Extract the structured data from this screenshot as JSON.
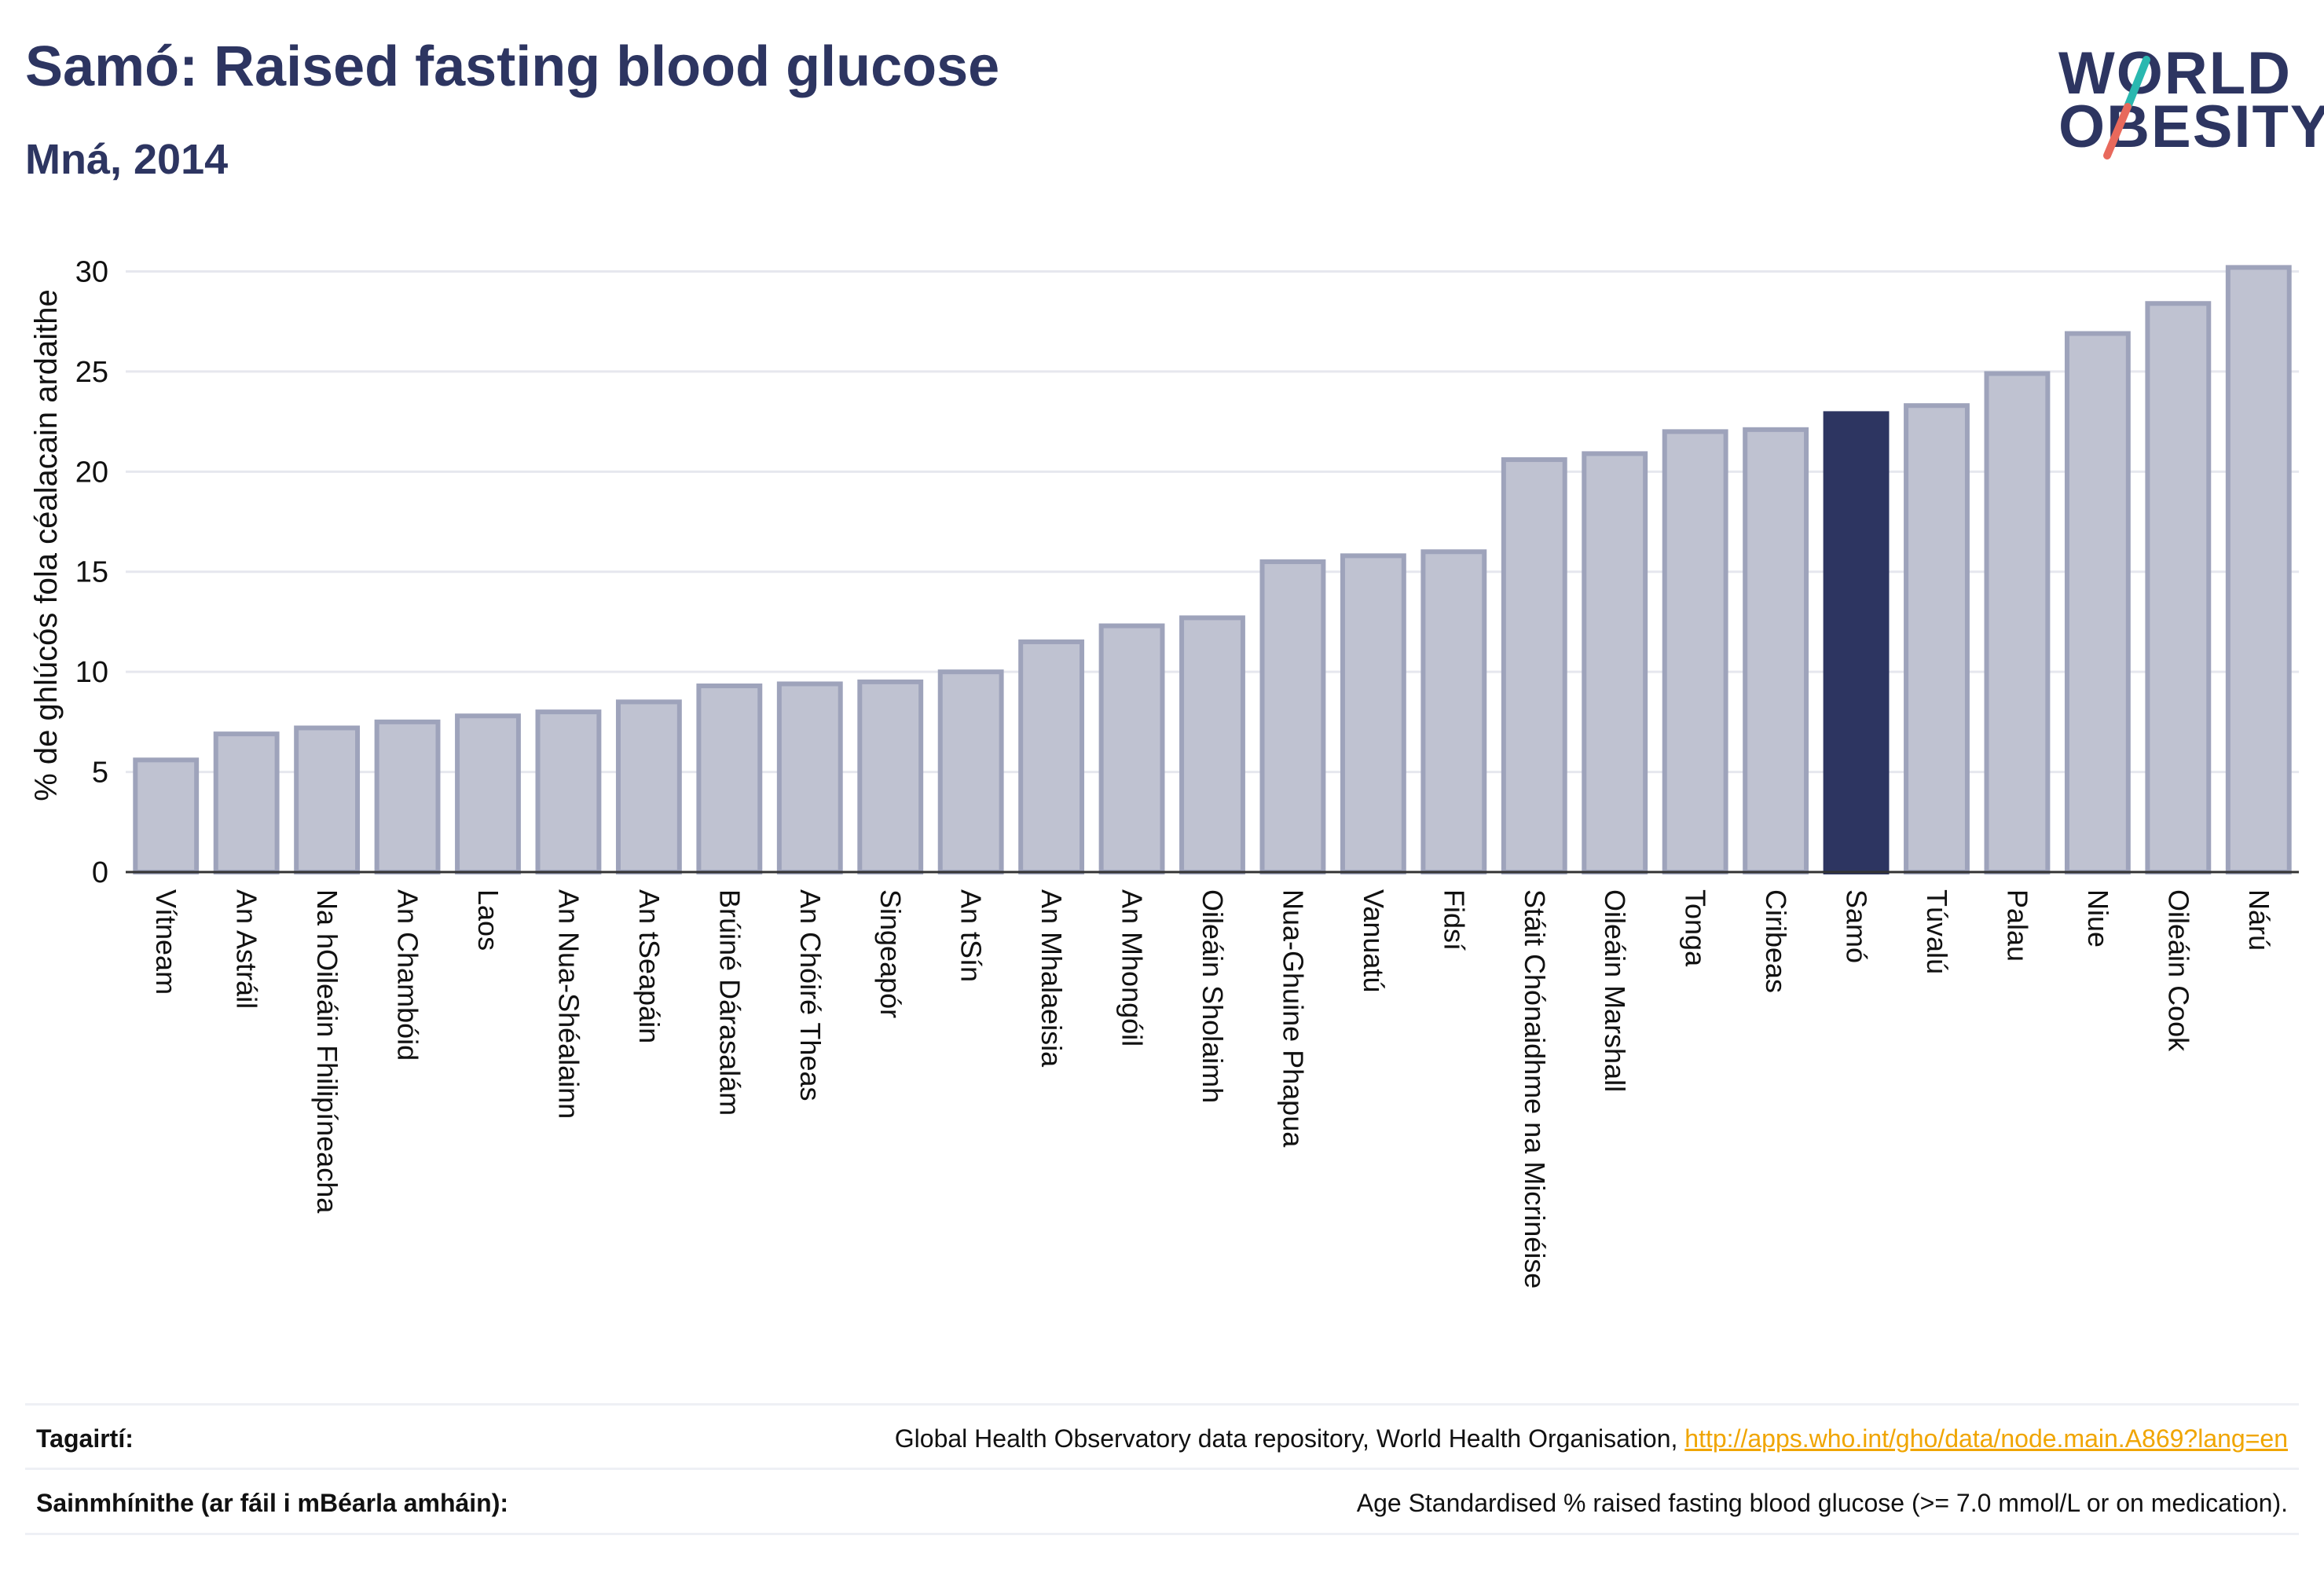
{
  "header": {
    "title": "Samó: Raised fasting blood glucose",
    "subtitle": "Mná, 2014"
  },
  "logo": {
    "line1": "WORLD",
    "line2": "OBESITY",
    "accent_colors": [
      "#2ab8b0",
      "#e8695c"
    ]
  },
  "colors": {
    "bar_default": "#bfc2d1",
    "bar_border": "#9ea3bb",
    "bar_highlight": "#2d3561",
    "grid": "#e6e7ee",
    "text": "#2d3561"
  },
  "chart_data": {
    "type": "bar",
    "ylabel": "% de ghlúcós fola céalacain ardaithe",
    "ylim": [
      0,
      31
    ],
    "yticks": [
      0,
      5,
      10,
      15,
      20,
      25,
      30
    ],
    "grid": true,
    "highlight": "Samó",
    "categories": [
      "Vítneam",
      "An Astráil",
      "Na hOileáin Fhilipíneacha",
      "An Chambóid",
      "Laos",
      "An Nua-Shéalainn",
      "An tSeapáin",
      "Brúiné Dárasalám",
      "An Chóiré Theas",
      "Singeapór",
      "An tSín",
      "An Mhalaeisia",
      "An Mhongóil",
      "Oileáin Sholaimh",
      "Nua-Ghuine Phapua",
      "Vanuatú",
      "Fidsí",
      "Stáit Chónaidhme na Micrinéise",
      "Oileáin Marshall",
      "Tonga",
      "Ciribeas",
      "Samó",
      "Túvalú",
      "Palau",
      "Niue",
      "Oileáin Cook",
      "Nárú"
    ],
    "values": [
      5.6,
      6.9,
      7.2,
      7.5,
      7.8,
      8.0,
      8.5,
      9.3,
      9.4,
      9.5,
      10.0,
      11.5,
      12.3,
      12.7,
      15.5,
      15.8,
      16.0,
      20.6,
      20.9,
      22.0,
      22.1,
      22.9,
      23.3,
      24.9,
      26.9,
      28.4,
      30.2
    ]
  },
  "footer": {
    "references_label": "Tagairtí:",
    "references_text": "Global Health Observatory data repository, World Health Organisation, ",
    "references_link": "http://apps.who.int/gho/data/node.main.A869?lang=en",
    "definitions_label": "Sainmhínithe (ar fáil i mBéarla amháin):",
    "definitions_text": "Age Standardised % raised fasting blood glucose (>= 7.0 mmol/L or on medication)."
  }
}
